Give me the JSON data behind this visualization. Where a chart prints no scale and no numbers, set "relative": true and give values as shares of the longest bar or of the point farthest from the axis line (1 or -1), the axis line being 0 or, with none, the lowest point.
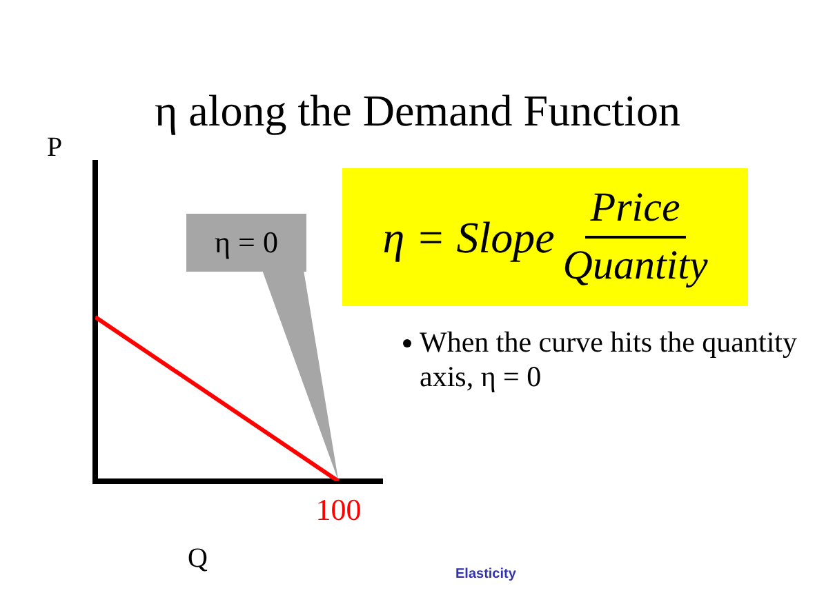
{
  "chart_data": {
    "type": "line",
    "title": "η along the Demand Function",
    "categories": [
      null,
      null
    ],
    "series": [
      {
        "color": "#ff0000",
        "values": [
          1,
          0
        ]
      }
    ],
    "relative": true,
    "tick_labels": false,
    "grid": false,
    "legend": false,
    "marker": "none",
    "line_style": "solid",
    "annotations": [
      "η = 0",
      "η = Slope",
      "Price",
      "Quantity",
      "When the curve hits the quantity axis, η = 0",
      "Elasticity",
      {
        "text": "100",
        "y": 0
      },
      "P",
      "Q"
    ]
  }
}
